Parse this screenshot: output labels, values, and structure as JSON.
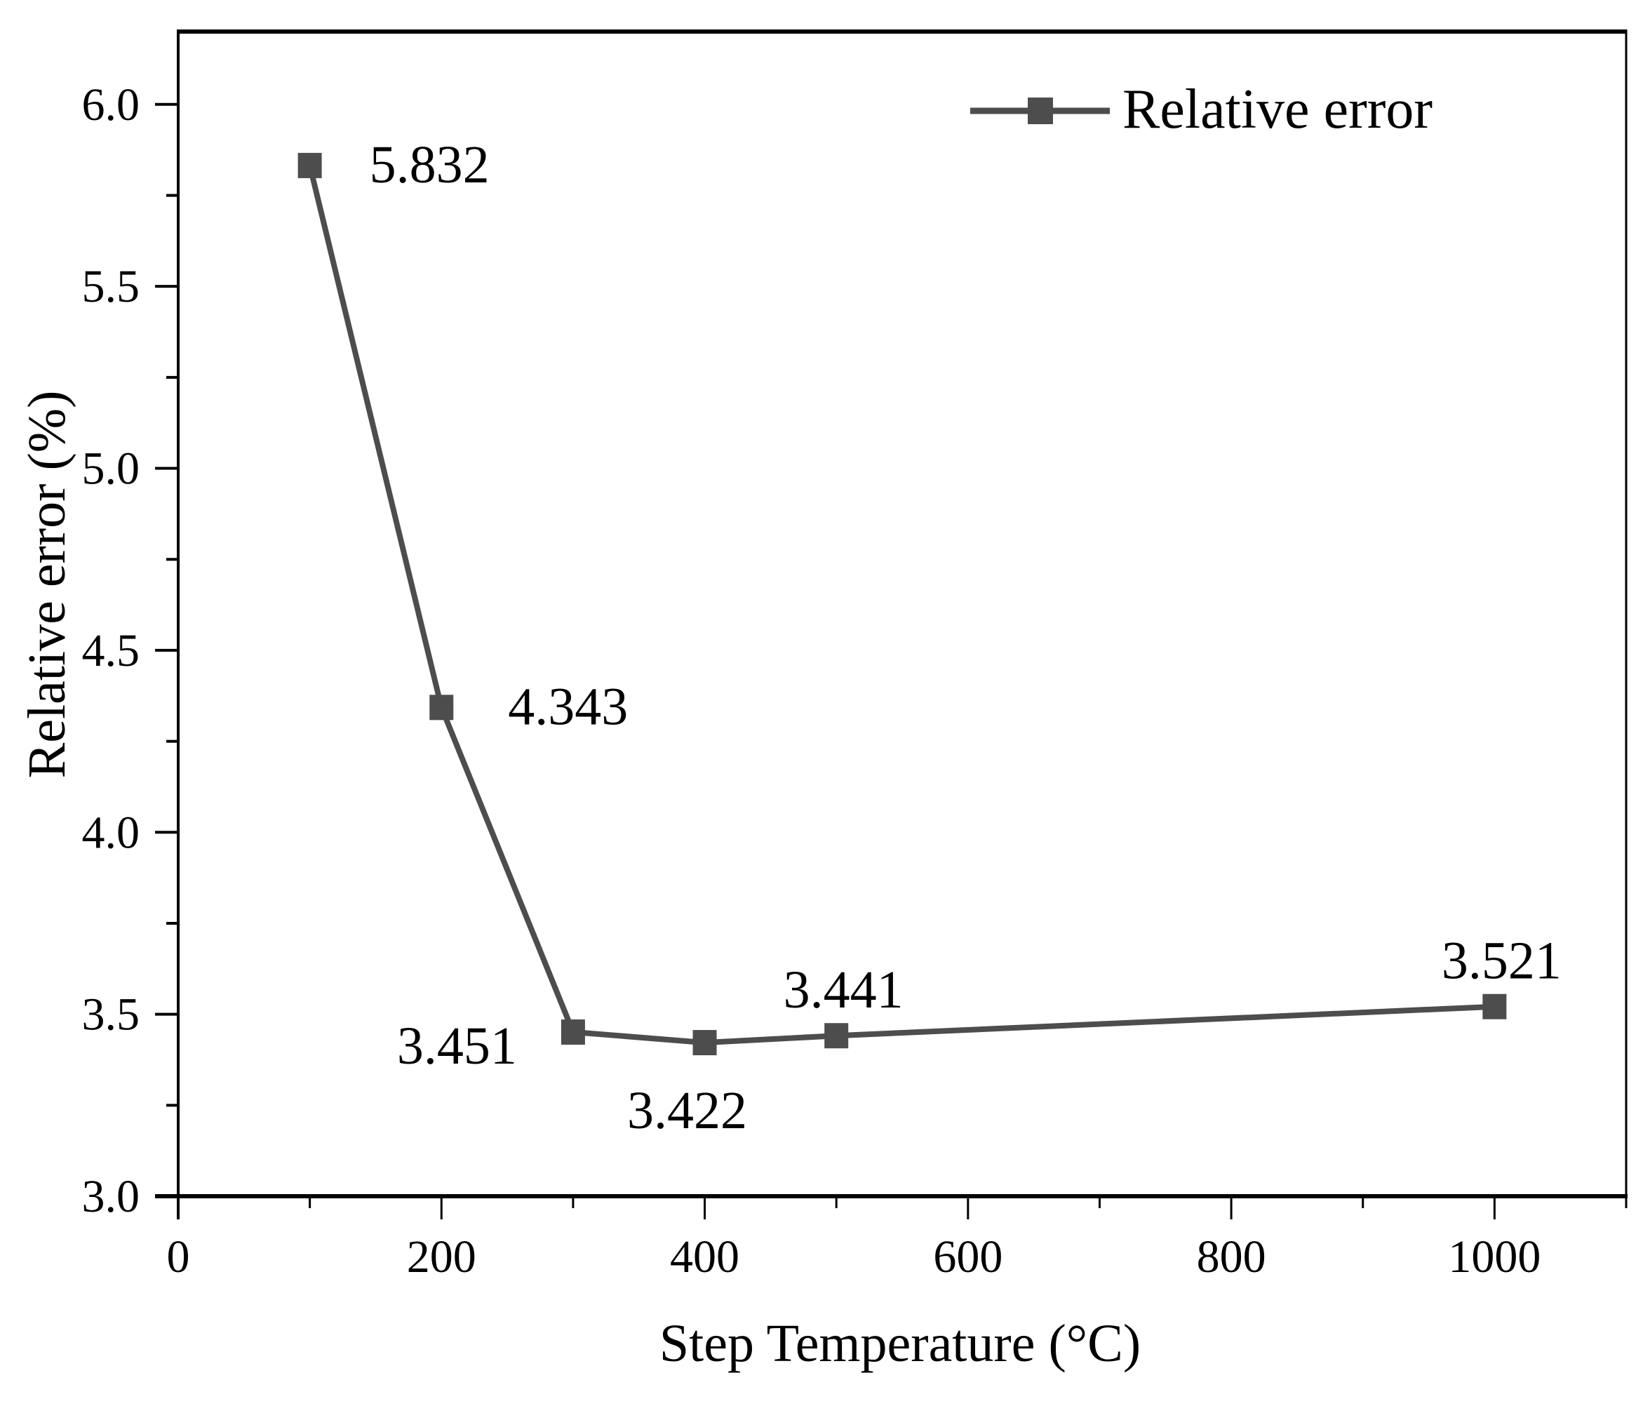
{
  "chart_data": {
    "type": "line",
    "title": "",
    "xlabel": "Step Temperature (°C)",
    "ylabel": "Relative error (%)",
    "x": [
      100,
      200,
      300,
      400,
      500,
      1000
    ],
    "series": [
      {
        "name": "Relative error",
        "values": [
          5.832,
          4.343,
          3.451,
          3.422,
          3.441,
          3.521
        ],
        "color": "#4d4d4d",
        "marker": "square"
      }
    ],
    "data_labels": [
      {
        "x": 100,
        "y": 5.832,
        "text": "5.832",
        "position": "right"
      },
      {
        "x": 200,
        "y": 4.343,
        "text": "4.343",
        "position": "right"
      },
      {
        "x": 300,
        "y": 3.451,
        "text": "3.451",
        "position": "below-left"
      },
      {
        "x": 400,
        "y": 3.422,
        "text": "3.422",
        "position": "below"
      },
      {
        "x": 500,
        "y": 3.441,
        "text": "3.441",
        "position": "above"
      },
      {
        "x": 1000,
        "y": 3.521,
        "text": "3.521",
        "position": "above"
      }
    ],
    "xlim": [
      0,
      1100
    ],
    "ylim": [
      3.0,
      6.2
    ],
    "xticks": [
      0,
      200,
      400,
      600,
      800,
      1000
    ],
    "xtick_labels": [
      "0",
      "200",
      "400",
      "600",
      "800",
      "1000"
    ],
    "x_minor_ticks": [
      100,
      300,
      500,
      700,
      900
    ],
    "yticks": [
      3.0,
      3.5,
      4.0,
      4.5,
      5.0,
      5.5,
      6.0
    ],
    "ytick_labels": [
      "3.0",
      "3.5",
      "4.0",
      "4.5",
      "5.0",
      "5.5",
      "6.0"
    ],
    "y_minor_ticks": [
      3.25,
      3.75,
      4.25,
      4.75,
      5.25,
      5.75
    ],
    "grid": false,
    "legend": {
      "position": "upper right",
      "entries": [
        "Relative error"
      ]
    }
  },
  "legend": {
    "label": "Relative error"
  },
  "axes": {
    "xlabel": "Step Temperature (°C)",
    "ylabel": "Relative error (%)"
  }
}
